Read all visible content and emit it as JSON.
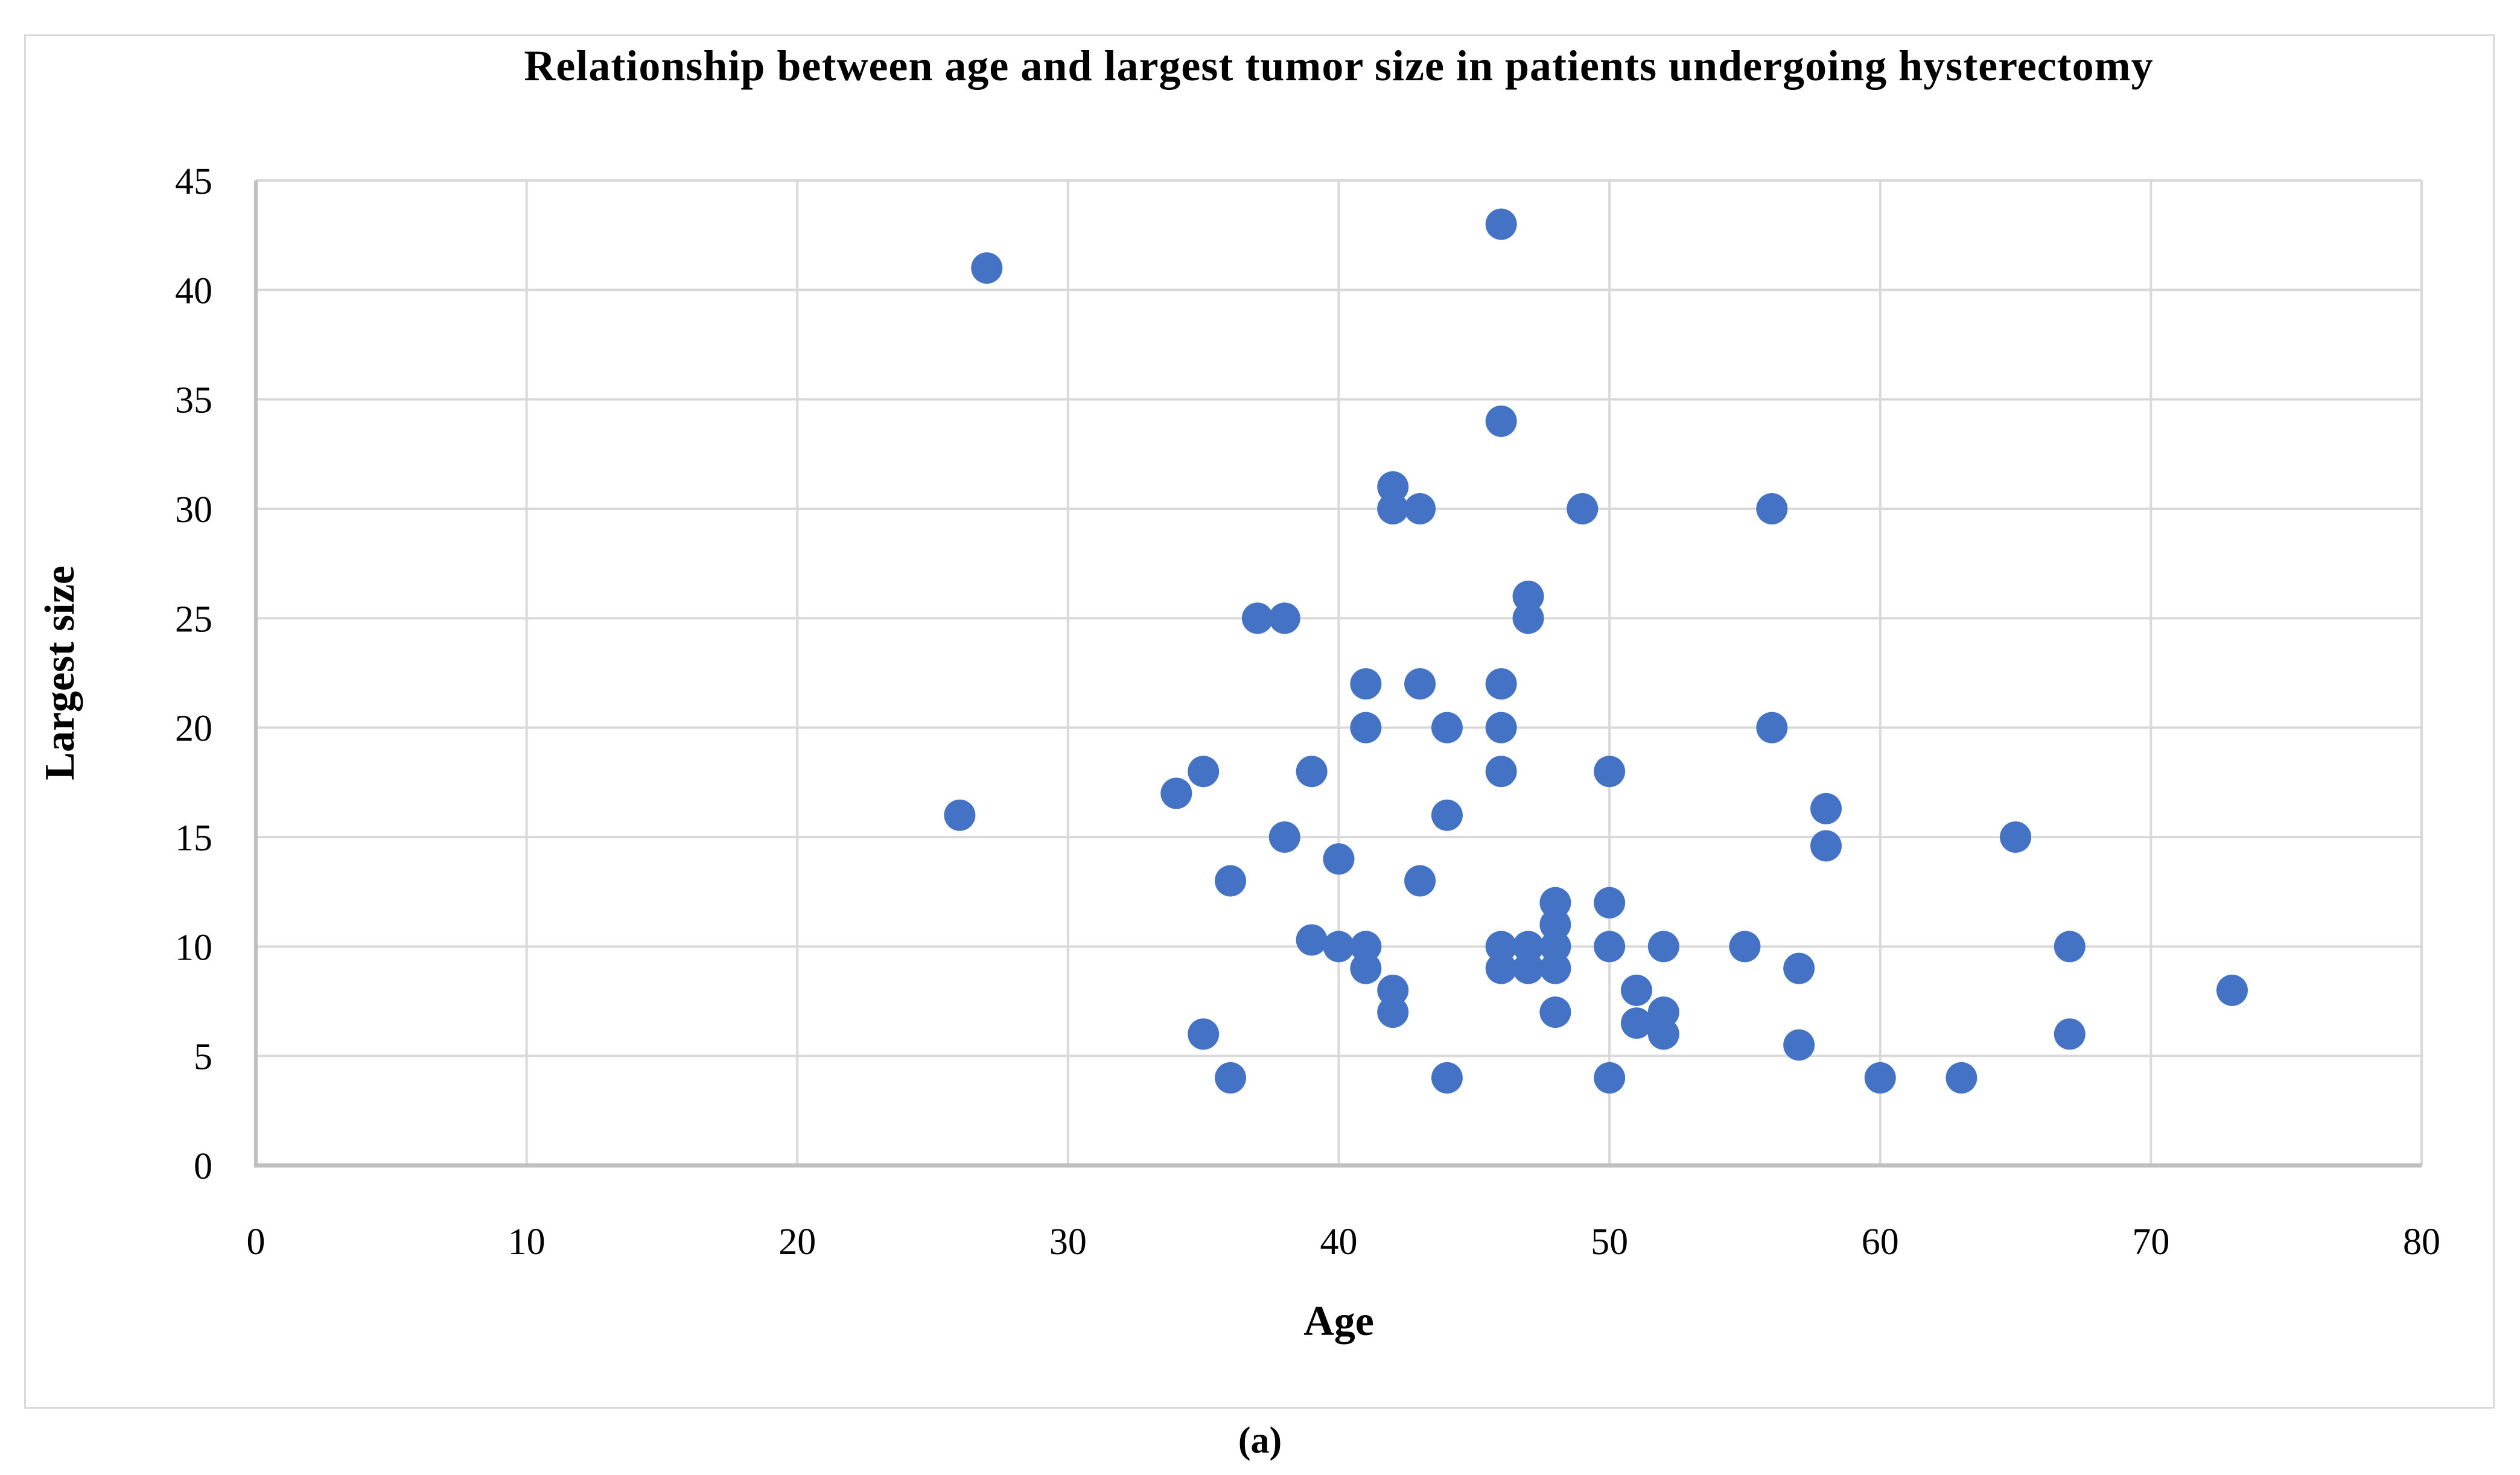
{
  "caption": "(a)",
  "chart_data": {
    "type": "scatter",
    "title": "Relationship between age and largest tumor size in patients undergoing hysterectomy",
    "xlabel": "Age",
    "ylabel": "Largest size",
    "xlim": [
      0,
      80
    ],
    "ylim": [
      0,
      45
    ],
    "xticks": [
      0,
      10,
      20,
      30,
      40,
      50,
      60,
      70,
      80
    ],
    "yticks": [
      0,
      5,
      10,
      15,
      20,
      25,
      30,
      35,
      40,
      45
    ],
    "grid": true,
    "legend": "none",
    "marker_color": "#4472C4",
    "gridline_color": "#d9d9d9",
    "axis_color": "#bfbfbf",
    "points": [
      [
        27,
        41
      ],
      [
        26,
        16
      ],
      [
        34,
        17
      ],
      [
        35,
        18
      ],
      [
        35,
        6
      ],
      [
        36,
        13
      ],
      [
        36,
        4
      ],
      [
        37,
        25
      ],
      [
        38,
        25
      ],
      [
        38,
        15
      ],
      [
        39,
        18
      ],
      [
        39,
        10.3
      ],
      [
        40,
        14
      ],
      [
        40,
        10
      ],
      [
        41,
        22
      ],
      [
        41,
        20
      ],
      [
        41,
        10
      ],
      [
        41,
        9
      ],
      [
        42,
        31
      ],
      [
        42,
        30
      ],
      [
        42,
        8
      ],
      [
        42,
        7
      ],
      [
        43,
        30
      ],
      [
        43,
        22
      ],
      [
        43,
        13
      ],
      [
        44,
        20
      ],
      [
        44,
        16
      ],
      [
        44,
        4
      ],
      [
        46,
        43
      ],
      [
        46,
        34
      ],
      [
        46,
        22
      ],
      [
        46,
        20
      ],
      [
        46,
        18
      ],
      [
        46,
        10
      ],
      [
        46,
        9
      ],
      [
        47,
        26
      ],
      [
        47,
        25
      ],
      [
        47,
        10
      ],
      [
        47,
        9
      ],
      [
        48,
        12
      ],
      [
        48,
        11
      ],
      [
        48,
        10
      ],
      [
        48,
        9
      ],
      [
        48,
        7
      ],
      [
        49,
        30
      ],
      [
        50,
        18
      ],
      [
        50,
        12
      ],
      [
        50,
        10
      ],
      [
        50,
        4
      ],
      [
        51,
        8
      ],
      [
        51,
        6.5
      ],
      [
        52,
        10
      ],
      [
        52,
        7
      ],
      [
        52,
        6
      ],
      [
        55,
        10
      ],
      [
        56,
        30
      ],
      [
        56,
        20
      ],
      [
        57,
        9
      ],
      [
        57,
        5.5
      ],
      [
        58,
        16.3
      ],
      [
        58,
        14.6
      ],
      [
        60,
        4
      ],
      [
        63,
        4
      ],
      [
        65,
        15
      ],
      [
        67,
        10
      ],
      [
        67,
        6
      ],
      [
        73,
        8
      ]
    ]
  }
}
